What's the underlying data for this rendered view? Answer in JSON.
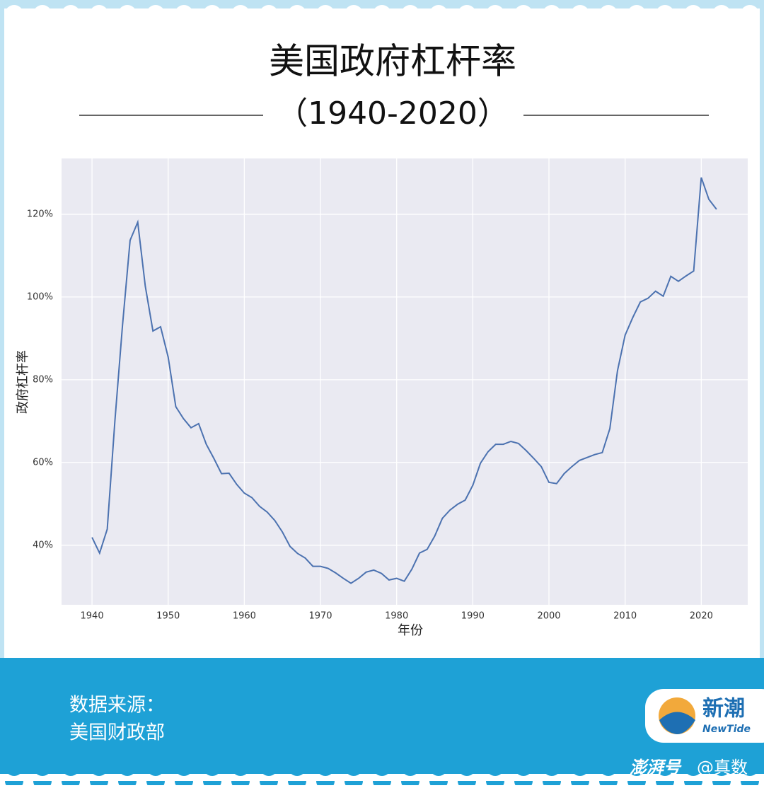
{
  "chart_data": {
    "type": "line",
    "title": "美国政府杠杆率",
    "subtitle": "（1940-2020）",
    "x_label": "年份",
    "y_label": "政府杠杆率",
    "x": [
      1940,
      1941,
      1942,
      1943,
      1944,
      1945,
      1946,
      1947,
      1948,
      1949,
      1950,
      1951,
      1952,
      1953,
      1954,
      1955,
      1956,
      1957,
      1958,
      1959,
      1960,
      1961,
      1962,
      1963,
      1964,
      1965,
      1966,
      1967,
      1968,
      1969,
      1970,
      1971,
      1972,
      1973,
      1974,
      1975,
      1976,
      1977,
      1978,
      1979,
      1980,
      1981,
      1982,
      1983,
      1984,
      1985,
      1986,
      1987,
      1988,
      1989,
      1990,
      1991,
      1992,
      1993,
      1994,
      1995,
      1996,
      1997,
      1998,
      1999,
      2000,
      2001,
      2002,
      2003,
      2004,
      2005,
      2006,
      2007,
      2008,
      2009,
      2010,
      2011,
      2012,
      2013,
      2014,
      2015,
      2016,
      2017,
      2018,
      2019,
      2020,
      2021,
      2022
    ],
    "series": [
      {
        "name": "政府杠杆率",
        "color": "#4c72b0",
        "values": [
          41.9,
          38.1,
          43.9,
          70,
          93,
          113.7,
          118.1,
          102.6,
          91.8,
          92.8,
          85.5,
          73.5,
          70.6,
          68.4,
          69.4,
          64.4,
          61,
          57.3,
          57.4,
          54.7,
          52.6,
          51.5,
          49.4,
          48,
          46,
          43.2,
          39.7,
          38,
          36.9,
          34.9,
          34.9,
          34.4,
          33.3,
          32,
          30.8,
          32,
          33.5,
          34,
          33.2,
          31.6,
          32,
          31.3,
          34.2,
          38.1,
          39,
          42.2,
          46.5,
          48.5,
          49.9,
          50.9,
          54.5,
          59.8,
          62.6,
          64.4,
          64.4,
          65.1,
          64.6,
          62.9,
          61,
          59,
          55.2,
          54.9,
          57.3,
          59,
          60.5,
          61.2,
          61.9,
          62.4,
          68.2,
          82.2,
          90.8,
          95,
          98.8,
          99.7,
          101.4,
          100.2,
          105,
          103.8,
          105.1,
          106.3,
          128.9,
          123.6,
          121.2
        ]
      }
    ],
    "xlim": [
      1936,
      2026.1
    ],
    "ylim": [
      25.6,
      133.5
    ],
    "xticks": [
      1940,
      1950,
      1960,
      1970,
      1980,
      1990,
      2000,
      2010,
      2020
    ],
    "yticks": [
      {
        "value": 40,
        "label": "40%"
      },
      {
        "value": 60,
        "label": "60%"
      },
      {
        "value": 80,
        "label": "80%"
      },
      {
        "value": 100,
        "label": "100%"
      },
      {
        "value": 120,
        "label": "120%"
      }
    ],
    "grid": true,
    "background": "#eaeaf2"
  },
  "footer": {
    "source_label": "数据来源：",
    "source": "美国财政部",
    "logo_cn": "新潮",
    "logo_en": "NewTide",
    "platform": "澎湃号",
    "account": "@真数"
  }
}
